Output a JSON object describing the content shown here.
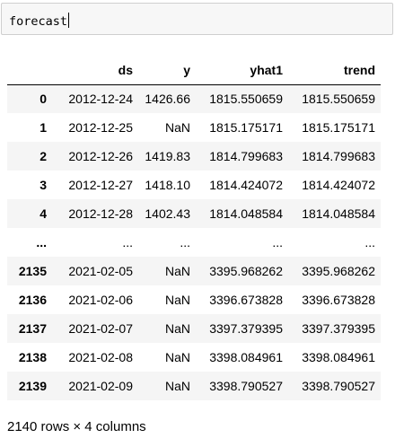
{
  "input": {
    "code": "forecast"
  },
  "table": {
    "columns": [
      "",
      "ds",
      "y",
      "yhat1",
      "trend"
    ],
    "rows": [
      {
        "index": "0",
        "ds": "2012-12-24",
        "y": "1426.66",
        "yhat1": "1815.550659",
        "trend": "1815.550659"
      },
      {
        "index": "1",
        "ds": "2012-12-25",
        "y": "NaN",
        "yhat1": "1815.175171",
        "trend": "1815.175171"
      },
      {
        "index": "2",
        "ds": "2012-12-26",
        "y": "1419.83",
        "yhat1": "1814.799683",
        "trend": "1814.799683"
      },
      {
        "index": "3",
        "ds": "2012-12-27",
        "y": "1418.10",
        "yhat1": "1814.424072",
        "trend": "1814.424072"
      },
      {
        "index": "4",
        "ds": "2012-12-28",
        "y": "1402.43",
        "yhat1": "1814.048584",
        "trend": "1814.048584"
      },
      {
        "index": "...",
        "ds": "...",
        "y": "...",
        "yhat1": "...",
        "trend": "..."
      },
      {
        "index": "2135",
        "ds": "2021-02-05",
        "y": "NaN",
        "yhat1": "3395.968262",
        "trend": "3395.968262"
      },
      {
        "index": "2136",
        "ds": "2021-02-06",
        "y": "NaN",
        "yhat1": "3396.673828",
        "trend": "3396.673828"
      },
      {
        "index": "2137",
        "ds": "2021-02-07",
        "y": "NaN",
        "yhat1": "3397.379395",
        "trend": "3397.379395"
      },
      {
        "index": "2138",
        "ds": "2021-02-08",
        "y": "NaN",
        "yhat1": "3398.084961",
        "trend": "3398.084961"
      },
      {
        "index": "2139",
        "ds": "2021-02-09",
        "y": "NaN",
        "yhat1": "3398.790527",
        "trend": "3398.790527"
      }
    ]
  },
  "footer": {
    "shape": "2140 rows × 4 columns"
  }
}
